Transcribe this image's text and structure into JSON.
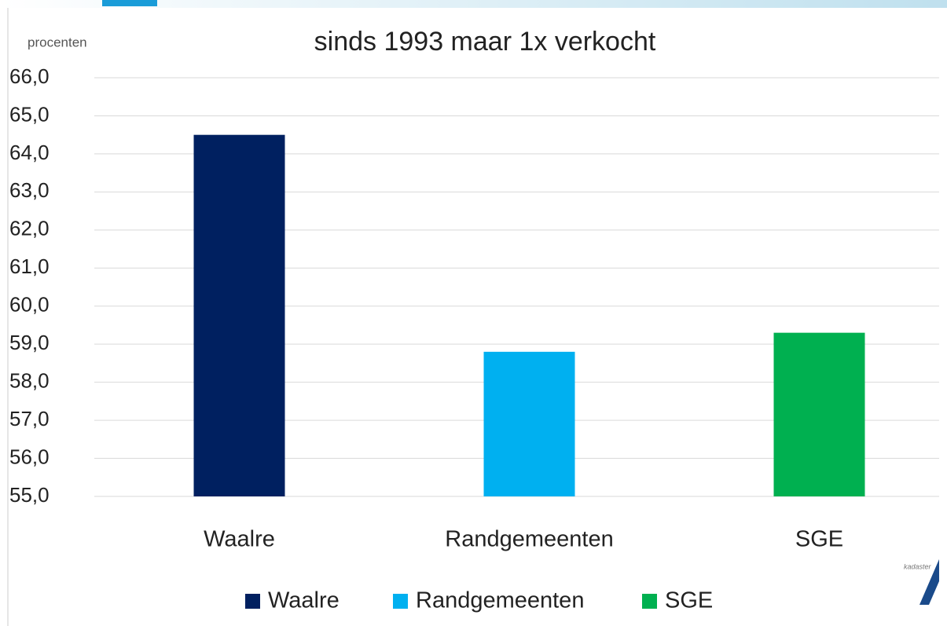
{
  "chart_data": {
    "type": "bar",
    "title": "sinds 1993 maar 1x verkocht",
    "y_label": "procenten",
    "categories": [
      "Waalre",
      "Randgemeenten",
      "SGE"
    ],
    "values": [
      64.5,
      58.8,
      59.3
    ],
    "colors": [
      "#002060",
      "#00b0f0",
      "#00b050"
    ],
    "ylim": [
      55,
      66
    ],
    "yticks": [
      {
        "value": 55,
        "label": "55,0"
      },
      {
        "value": 56,
        "label": "56,0"
      },
      {
        "value": 57,
        "label": "57,0"
      },
      {
        "value": 58,
        "label": "58,0"
      },
      {
        "value": 59,
        "label": "59,0"
      },
      {
        "value": 60,
        "label": "60,0"
      },
      {
        "value": 61,
        "label": "61,0"
      },
      {
        "value": 62,
        "label": "62,0"
      },
      {
        "value": 63,
        "label": "63,0"
      },
      {
        "value": 64,
        "label": "64,0"
      },
      {
        "value": 65,
        "label": "65,0"
      },
      {
        "value": 66,
        "label": "66,0"
      }
    ],
    "grid": true,
    "legend": "bottom",
    "logo": "kadaster"
  }
}
